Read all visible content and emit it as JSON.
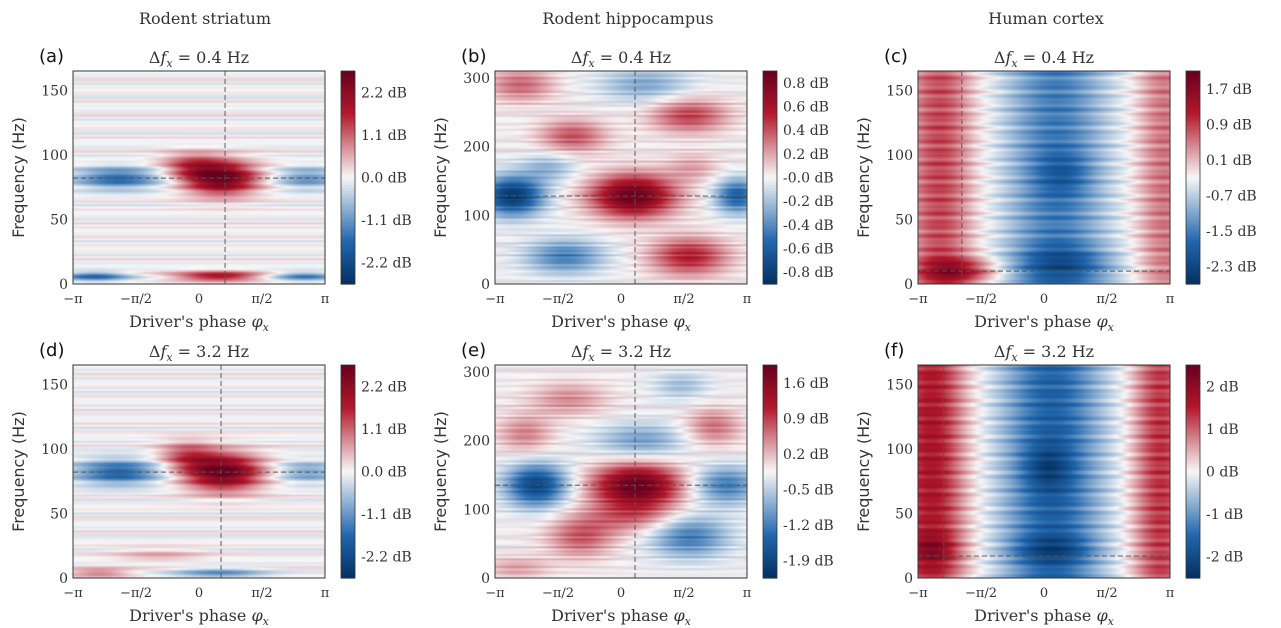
{
  "column_titles": [
    "Rodent striatum",
    "Rodent hippocampus",
    "Human cortex"
  ],
  "colormap": {
    "low": "#053061",
    "mid": "#f7f7f7",
    "high": "#67001f"
  },
  "chart_data": [
    {
      "panel": "(a)",
      "type": "heatmap",
      "title": "Δf_x = 0.4 Hz",
      "xlabel": "Driver's phase φ_x",
      "ylabel": "Frequency (Hz)",
      "xticks": [
        "−π",
        "−π/2",
        "0",
        "π/2",
        "π"
      ],
      "xlim": [
        -3.1416,
        3.1416
      ],
      "ylim": [
        0,
        165
      ],
      "yticks": [
        0,
        50,
        100,
        150
      ],
      "vline_x": 0.65,
      "hline_y": 82,
      "colorbar": {
        "min": -2.2,
        "max": 2.2,
        "ticks": [
          "2.2 dB",
          "1.1 dB",
          "0.0 dB",
          "-1.1 dB",
          "-2.2 dB"
        ]
      },
      "blobs": [
        {
          "x": 0.55,
          "y": 82,
          "sx": 0.65,
          "sy": 9,
          "a": 2.2
        },
        {
          "x": -0.2,
          "y": 92,
          "sx": 0.55,
          "sy": 7,
          "a": 0.9
        },
        {
          "x": -2.0,
          "y": 82,
          "sx": 0.8,
          "sy": 6,
          "a": -1.3
        },
        {
          "x": 2.7,
          "y": 82,
          "sx": 0.6,
          "sy": 6,
          "a": -0.9
        },
        {
          "x": 0.5,
          "y": 6,
          "sx": 0.8,
          "sy": 2.5,
          "a": 1.6
        },
        {
          "x": -2.6,
          "y": 6,
          "sx": 0.6,
          "sy": 2.5,
          "a": -1.3
        },
        {
          "x": 2.6,
          "y": 6,
          "sx": 0.6,
          "sy": 2.5,
          "a": -1.1
        }
      ]
    },
    {
      "panel": "(b)",
      "type": "heatmap",
      "title": "Δf_x = 0.4 Hz",
      "xlabel": "Driver's phase φ_x",
      "ylabel": "Frequency (Hz)",
      "xticks": [
        "−π",
        "−π/2",
        "0",
        "π/2",
        "π"
      ],
      "xlim": [
        -3.1416,
        3.1416
      ],
      "ylim": [
        0,
        310
      ],
      "yticks": [
        0,
        100,
        200,
        300
      ],
      "vline_x": 0.35,
      "hline_y": 128,
      "colorbar": {
        "min": -0.9,
        "max": 0.9,
        "ticks": [
          "0.8 dB",
          "0.6 dB",
          "0.4 dB",
          "0.2 dB",
          "-0.0 dB",
          "-0.2 dB",
          "-0.4 dB",
          "-0.6 dB",
          "-0.8 dB"
        ]
      },
      "blobs": [
        {
          "x": 0.3,
          "y": 128,
          "sx": 0.75,
          "sy": 22,
          "a": 0.9
        },
        {
          "x": -2.7,
          "y": 128,
          "sx": 0.55,
          "sy": 20,
          "a": -0.85
        },
        {
          "x": 2.9,
          "y": 128,
          "sx": 0.4,
          "sy": 18,
          "a": -0.6
        },
        {
          "x": -1.2,
          "y": 215,
          "sx": 0.6,
          "sy": 18,
          "a": 0.4
        },
        {
          "x": 1.7,
          "y": 245,
          "sx": 0.7,
          "sy": 18,
          "a": 0.45
        },
        {
          "x": 1.7,
          "y": 40,
          "sx": 0.7,
          "sy": 20,
          "a": 0.55
        },
        {
          "x": -1.4,
          "y": 40,
          "sx": 0.7,
          "sy": 18,
          "a": -0.45
        },
        {
          "x": -2.5,
          "y": 290,
          "sx": 0.6,
          "sy": 18,
          "a": 0.35
        },
        {
          "x": 0.6,
          "y": 290,
          "sx": 0.8,
          "sy": 18,
          "a": -0.3
        },
        {
          "x": -1.8,
          "y": 170,
          "sx": 0.5,
          "sy": 15,
          "a": -0.25
        },
        {
          "x": 1.8,
          "y": 170,
          "sx": 0.5,
          "sy": 15,
          "a": 0.2
        }
      ]
    },
    {
      "panel": "(c)",
      "type": "heatmap",
      "title": "Δf_x = 0.4 Hz",
      "xlabel": "Driver's phase φ_x",
      "ylabel": "Frequency (Hz)",
      "xticks": [
        "−π",
        "−π/2",
        "0",
        "π/2",
        "π"
      ],
      "xlim": [
        -3.1416,
        3.1416
      ],
      "ylim": [
        0,
        165
      ],
      "yticks": [
        0,
        50,
        100,
        150
      ],
      "vline_x": -2.05,
      "hline_y": 10,
      "colorbar": {
        "min": -2.5,
        "max": 2.1,
        "ticks": [
          "1.7 dB",
          "0.9 dB",
          "0.1 dB",
          "-0.7 dB",
          "-1.5 dB",
          "-2.3 dB"
        ]
      },
      "blobs": [
        {
          "x": -2.6,
          "y": 90,
          "sx": 0.6,
          "sy": 200,
          "a": 1.2
        },
        {
          "x": 3.0,
          "y": 90,
          "sx": 0.5,
          "sy": 200,
          "a": 0.9
        },
        {
          "x": 0.3,
          "y": 90,
          "sx": 0.9,
          "sy": 200,
          "a": -1.3
        },
        {
          "x": 0.5,
          "y": 85,
          "sx": 0.5,
          "sy": 12,
          "a": -0.5
        },
        {
          "x": 0.5,
          "y": 15,
          "sx": 0.9,
          "sy": 10,
          "a": -0.9
        },
        {
          "x": -2.1,
          "y": 10,
          "sx": 0.7,
          "sy": 7,
          "a": 1.3
        }
      ]
    },
    {
      "panel": "(d)",
      "type": "heatmap",
      "title": "Δf_x = 3.2 Hz",
      "xlabel": "Driver's phase φ_x",
      "ylabel": "Frequency (Hz)",
      "xticks": [
        "−π",
        "−π/2",
        "0",
        "π/2",
        "π"
      ],
      "xlim": [
        -3.1416,
        3.1416
      ],
      "ylim": [
        0,
        165
      ],
      "yticks": [
        0,
        50,
        100,
        150
      ],
      "vline_x": 0.55,
      "hline_y": 82,
      "colorbar": {
        "min": -2.2,
        "max": 2.2,
        "ticks": [
          "2.2 dB",
          "1.1 dB",
          "0.0 dB",
          "-1.1 dB",
          "-2.2 dB"
        ]
      },
      "blobs": [
        {
          "x": 0.6,
          "y": 82,
          "sx": 0.7,
          "sy": 10,
          "a": 2.2
        },
        {
          "x": -0.3,
          "y": 95,
          "sx": 0.5,
          "sy": 8,
          "a": 0.9
        },
        {
          "x": -2.0,
          "y": 82,
          "sx": 0.8,
          "sy": 7,
          "a": -1.4
        },
        {
          "x": 2.7,
          "y": 82,
          "sx": 0.6,
          "sy": 6,
          "a": -0.8
        },
        {
          "x": -1.0,
          "y": 18,
          "sx": 0.8,
          "sy": 4,
          "a": 0.4
        },
        {
          "x": 0.5,
          "y": 4,
          "sx": 0.8,
          "sy": 2.5,
          "a": -0.9
        },
        {
          "x": -2.5,
          "y": 4,
          "sx": 0.6,
          "sy": 2.5,
          "a": 0.8
        }
      ]
    },
    {
      "panel": "(e)",
      "type": "heatmap",
      "title": "Δf_x = 3.2 Hz",
      "xlabel": "Driver's phase φ_x",
      "ylabel": "Frequency (Hz)",
      "xticks": [
        "−π",
        "−π/2",
        "0",
        "π/2",
        "π"
      ],
      "xlim": [
        -3.1416,
        3.1416
      ],
      "ylim": [
        0,
        310
      ],
      "yticks": [
        0,
        100,
        200,
        300
      ],
      "vline_x": 0.35,
      "hline_y": 135,
      "colorbar": {
        "min": -1.9,
        "max": 1.9,
        "ticks": [
          "1.6 dB",
          "0.9 dB",
          "0.2 dB",
          "-0.5 dB",
          "-1.2 dB",
          "-1.9 dB"
        ]
      },
      "blobs": [
        {
          "x": 0.4,
          "y": 135,
          "sx": 0.8,
          "sy": 22,
          "a": 1.9
        },
        {
          "x": -2.1,
          "y": 135,
          "sx": 0.55,
          "sy": 22,
          "a": -1.6
        },
        {
          "x": 2.6,
          "y": 135,
          "sx": 0.6,
          "sy": 20,
          "a": -1.0
        },
        {
          "x": 0.3,
          "y": 90,
          "sx": 0.8,
          "sy": 18,
          "a": 0.7
        },
        {
          "x": -1.0,
          "y": 60,
          "sx": 0.6,
          "sy": 22,
          "a": 0.8
        },
        {
          "x": 1.7,
          "y": 60,
          "sx": 0.7,
          "sy": 22,
          "a": -1.0
        },
        {
          "x": 0.5,
          "y": 200,
          "sx": 0.8,
          "sy": 18,
          "a": -0.7
        },
        {
          "x": -2.4,
          "y": 210,
          "sx": 0.5,
          "sy": 20,
          "a": 0.6
        },
        {
          "x": 2.3,
          "y": 220,
          "sx": 0.5,
          "sy": 20,
          "a": 0.7
        },
        {
          "x": -1.3,
          "y": 260,
          "sx": 0.7,
          "sy": 18,
          "a": 0.55
        },
        {
          "x": 1.5,
          "y": 280,
          "sx": 0.5,
          "sy": 15,
          "a": -0.45
        },
        {
          "x": -2.6,
          "y": 15,
          "sx": 0.6,
          "sy": 12,
          "a": 0.45
        }
      ]
    },
    {
      "panel": "(f)",
      "type": "heatmap",
      "title": "Δf_x = 3.2 Hz",
      "xlabel": "Driver's phase φ_x",
      "ylabel": "Frequency (Hz)",
      "xticks": [
        "−π",
        "−π/2",
        "0",
        "π/2",
        "π"
      ],
      "xlim": [
        -3.1416,
        3.1416
      ],
      "ylim": [
        0,
        165
      ],
      "yticks": [
        0,
        50,
        100,
        150
      ],
      "vline_x": -2.5,
      "hline_y": 17,
      "colorbar": {
        "min": -2.6,
        "max": 2.6,
        "ticks": [
          "2 dB",
          "1 dB",
          "0 dB",
          "-1 dB",
          "-2 dB"
        ]
      },
      "blobs": [
        {
          "x": -2.8,
          "y": 90,
          "sx": 0.6,
          "sy": 200,
          "a": 1.7
        },
        {
          "x": 2.9,
          "y": 90,
          "sx": 0.5,
          "sy": 200,
          "a": 1.4
        },
        {
          "x": 0.2,
          "y": 90,
          "sx": 0.9,
          "sy": 200,
          "a": -1.7
        },
        {
          "x": 0.1,
          "y": 85,
          "sx": 0.4,
          "sy": 12,
          "a": -0.7
        },
        {
          "x": 0.2,
          "y": 22,
          "sx": 0.7,
          "sy": 8,
          "a": -0.8
        },
        {
          "x": -2.8,
          "y": 22,
          "sx": 0.5,
          "sy": 8,
          "a": 0.7
        }
      ]
    }
  ]
}
